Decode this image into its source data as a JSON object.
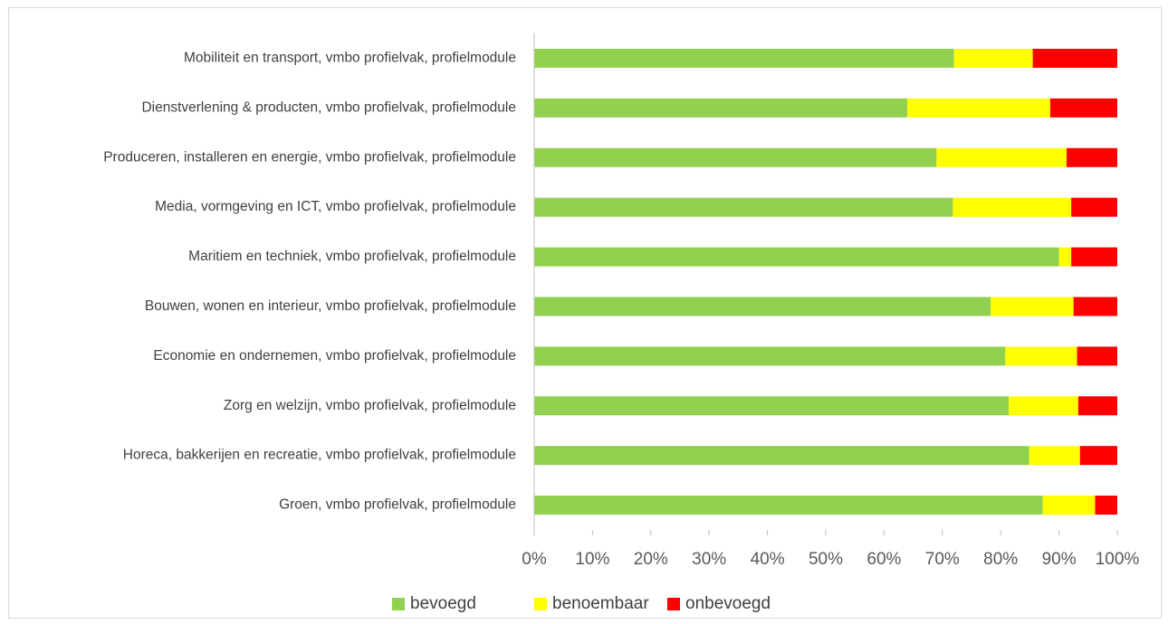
{
  "chart_data": {
    "type": "bar",
    "orientation": "horizontal",
    "stacked": "percent",
    "categories": [
      "Mobiliteit en transport, vmbo profielvak, profielmodule",
      "Dienstverlening & producten, vmbo profielvak, profielmodule",
      "Produceren, installeren en energie, vmbo profielvak, profielmodule",
      "Media, vormgeving en ICT, vmbo profielvak, profielmodule",
      "Maritiem en techniek, vmbo profielvak, profielmodule",
      "Bouwen, wonen en interieur, vmbo profielvak, profielmodule",
      "Economie en ondernemen, vmbo profielvak, profielmodule",
      "Zorg en welzijn, vmbo profielvak, profielmodule",
      "Horeca, bakkerijen en recreatie, vmbo profielvak, profielmodule",
      "Groen, vmbo profielvak, profielmodule"
    ],
    "series": [
      {
        "name": "bevoegd",
        "color": "#92d050",
        "values": [
          72.0,
          64.0,
          69.0,
          71.8,
          90.0,
          78.3,
          80.8,
          81.4,
          84.9,
          87.2
        ]
      },
      {
        "name": "benoembaar",
        "color": "#ffff00",
        "values": [
          13.5,
          24.5,
          22.3,
          20.3,
          2.1,
          14.2,
          12.3,
          11.9,
          8.7,
          9.0
        ]
      },
      {
        "name": "onbevoegd",
        "color": "#ff0000",
        "values": [
          14.5,
          11.5,
          8.7,
          7.9,
          7.9,
          7.5,
          6.9,
          6.7,
          6.4,
          3.8
        ]
      }
    ],
    "xticks": [
      "0%",
      "10%",
      "20%",
      "30%",
      "40%",
      "50%",
      "60%",
      "70%",
      "80%",
      "90%",
      "100%"
    ],
    "xlim": [
      0,
      100
    ],
    "title": "",
    "xlabel": "",
    "ylabel": "",
    "grid": false,
    "legend_position": "bottom"
  }
}
